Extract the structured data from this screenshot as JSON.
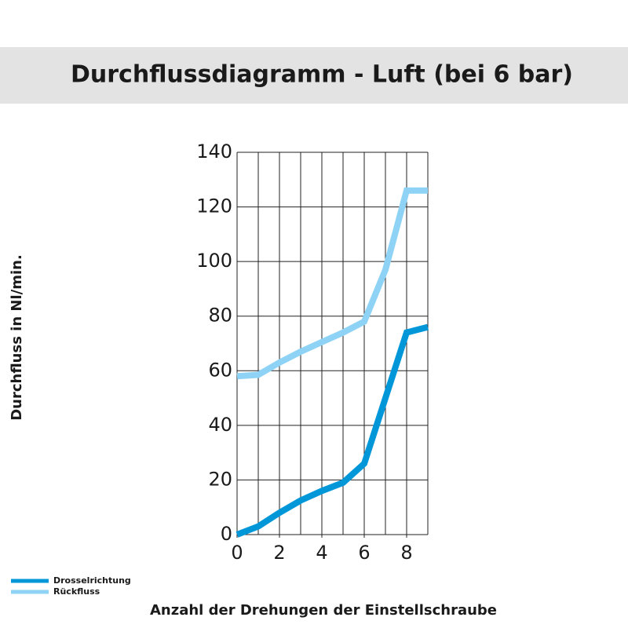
{
  "chart_data": {
    "type": "line",
    "title": "Durchflussdiagramm - Luft (bei 6 bar)",
    "x_label": "Anzahl der Drehungen der Einstellschraube",
    "y_label": "Durchfluss in Nl/min.",
    "x": [
      0,
      1,
      2,
      3,
      4,
      5,
      6,
      7,
      8,
      9
    ],
    "series": [
      {
        "name": "Drosselrichtung",
        "color": "#0097d9",
        "values": [
          0,
          3,
          8,
          12.5,
          16,
          19,
          26,
          50,
          74,
          76
        ]
      },
      {
        "name": "Rückfluss",
        "color": "#8ed3f5",
        "values": [
          58,
          58.5,
          63,
          67,
          70.5,
          74,
          78,
          97,
          126,
          126
        ]
      }
    ],
    "xlim": [
      0,
      9
    ],
    "xticks": [
      0,
      2,
      4,
      6,
      8
    ],
    "x_grid_step": 1,
    "ylim": [
      0,
      140
    ],
    "yticks": [
      0,
      20,
      40,
      60,
      80,
      100,
      120,
      140
    ],
    "grid": true,
    "legend": "bottom-left"
  }
}
